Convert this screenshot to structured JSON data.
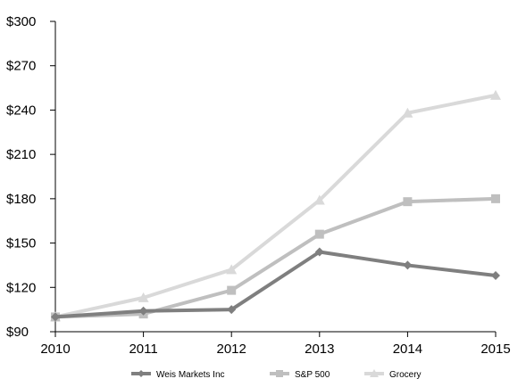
{
  "chart_data": {
    "type": "line",
    "x": [
      2010,
      2011,
      2012,
      2013,
      2014,
      2015
    ],
    "x_tick_labels": [
      "2010",
      "2011",
      "2012",
      "2013",
      "2014",
      "2015"
    ],
    "ylim": [
      90,
      300
    ],
    "y_ticks": [
      90,
      120,
      150,
      180,
      210,
      240,
      270,
      300
    ],
    "y_tick_labels": [
      "$90",
      "$120",
      "$150",
      "$180",
      "$210",
      "$240",
      "$270",
      "$300"
    ],
    "grid": false,
    "legend_position": "bottom",
    "series": [
      {
        "name": "Weis Markets Inc",
        "marker": "diamond",
        "color": "#7f7f7f",
        "values": [
          100,
          104,
          105,
          144,
          135,
          128
        ]
      },
      {
        "name": "S&P 500",
        "marker": "square",
        "color": "#bfbfbf",
        "values": [
          100,
          102,
          118,
          156,
          178,
          180
        ]
      },
      {
        "name": "Grocery",
        "marker": "triangle",
        "color": "#d9d9d9",
        "values": [
          100,
          113,
          132,
          179,
          238,
          250
        ]
      }
    ]
  }
}
